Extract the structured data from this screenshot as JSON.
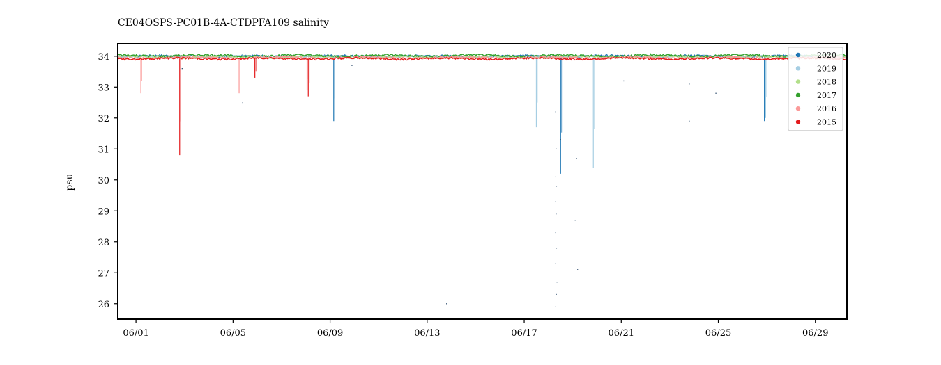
{
  "chart_data": {
    "type": "scatter",
    "title": "CE04OSPS-PC01B-4A-CTDPFA109 salinity",
    "xlabel": "",
    "ylabel": "psu",
    "xlim_days": [
      -0.75,
      29.3
    ],
    "ylim": [
      25.5,
      34.4
    ],
    "x_ticks": [
      {
        "day": 0,
        "label": "06/01"
      },
      {
        "day": 4,
        "label": "06/05"
      },
      {
        "day": 8,
        "label": "06/09"
      },
      {
        "day": 12,
        "label": "06/13"
      },
      {
        "day": 16,
        "label": "06/17"
      },
      {
        "day": 20,
        "label": "06/21"
      },
      {
        "day": 24,
        "label": "06/25"
      },
      {
        "day": 28,
        "label": "06/29"
      }
    ],
    "y_ticks": [
      26,
      27,
      28,
      29,
      30,
      31,
      32,
      33,
      34
    ],
    "legend_position": "top-right",
    "series": [
      {
        "name": "2020",
        "color": "#1f77b4",
        "baseline": 34.0,
        "spikes": [
          {
            "day": 8.15,
            "min": 31.9
          },
          {
            "day": 17.5,
            "min": 30.2
          },
          {
            "day": 25.9,
            "min": 31.9
          }
        ]
      },
      {
        "name": "2019",
        "color": "#a6cee3",
        "baseline": 33.98,
        "spikes": [
          {
            "day": 16.5,
            "min": 31.7
          },
          {
            "day": 18.85,
            "min": 30.4
          },
          {
            "day": 25.95,
            "min": 32.0
          }
        ]
      },
      {
        "name": "2018",
        "color": "#b2df8a",
        "baseline": 33.97,
        "spikes": []
      },
      {
        "name": "2017",
        "color": "#33a02c",
        "baseline": 34.02,
        "spikes": []
      },
      {
        "name": "2016",
        "color": "#fb9a99",
        "baseline": 33.95,
        "spikes": [
          {
            "day": 0.2,
            "min": 32.8
          },
          {
            "day": 4.25,
            "min": 32.8
          },
          {
            "day": 7.05,
            "min": 32.9
          }
        ]
      },
      {
        "name": "2015",
        "color": "#e31a1c",
        "baseline": 33.92,
        "spikes": [
          {
            "day": 1.8,
            "min": 30.8
          },
          {
            "day": 4.9,
            "min": 33.3
          },
          {
            "day": 7.1,
            "min": 32.7
          }
        ]
      }
    ],
    "scattered_points": [
      {
        "day": 17.3,
        "value": 25.9
      },
      {
        "day": 17.32,
        "value": 26.3
      },
      {
        "day": 17.35,
        "value": 26.7
      },
      {
        "day": 17.3,
        "value": 27.3
      },
      {
        "day": 17.33,
        "value": 27.8
      },
      {
        "day": 17.3,
        "value": 28.3
      },
      {
        "day": 17.31,
        "value": 28.9
      },
      {
        "day": 17.3,
        "value": 29.3
      },
      {
        "day": 17.33,
        "value": 29.8
      },
      {
        "day": 17.3,
        "value": 30.1
      },
      {
        "day": 17.32,
        "value": 31.0
      },
      {
        "day": 18.2,
        "value": 27.1
      },
      {
        "day": 18.1,
        "value": 28.7
      },
      {
        "day": 18.15,
        "value": 30.7
      },
      {
        "day": 12.8,
        "value": 26.0
      },
      {
        "day": 17.3,
        "value": 32.2
      },
      {
        "day": 17.5,
        "value": 31.3
      },
      {
        "day": 22.8,
        "value": 31.9
      },
      {
        "day": 1.9,
        "value": 33.6
      },
      {
        "day": 4.4,
        "value": 32.5
      },
      {
        "day": 23.9,
        "value": 32.8
      },
      {
        "day": 8.9,
        "value": 33.7
      },
      {
        "day": 20.1,
        "value": 33.2
      },
      {
        "day": 22.8,
        "value": 33.1
      }
    ]
  }
}
